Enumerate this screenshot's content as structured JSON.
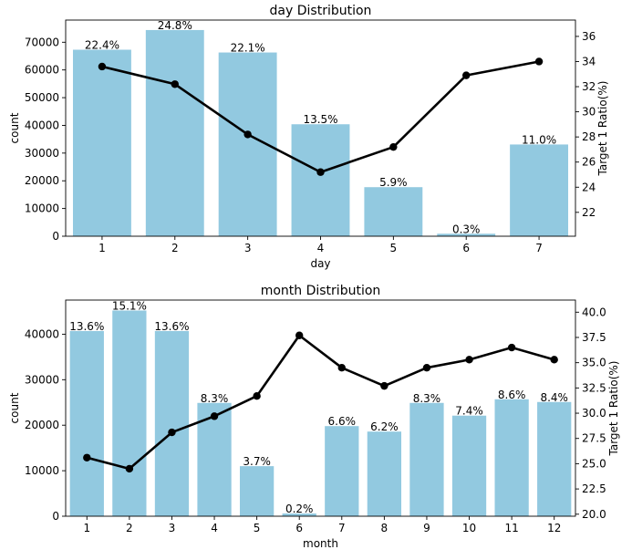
{
  "chart_data": [
    {
      "type": "bar+line",
      "title": "day Distribution",
      "xlabel": "day",
      "ylabel": "count",
      "y2label": "Target 1 Ratio(%)",
      "categories": [
        "1",
        "2",
        "3",
        "4",
        "5",
        "6",
        "7"
      ],
      "counts": [
        67300,
        74400,
        66300,
        40400,
        17700,
        900,
        33100
      ],
      "pct_labels": [
        "22.4%",
        "24.8%",
        "22.1%",
        "13.5%",
        "5.9%",
        "0.3%",
        "11.0%"
      ],
      "ratios": [
        33.6,
        32.2,
        28.2,
        25.2,
        27.2,
        32.9,
        34.0
      ],
      "ylim": [
        0,
        78000
      ],
      "y2lim": [
        20.1,
        37.3
      ],
      "yticks": [
        0,
        10000,
        20000,
        30000,
        40000,
        50000,
        60000,
        70000
      ],
      "y2ticks": [
        22,
        24,
        26,
        28,
        30,
        32,
        34,
        36
      ],
      "bar_color": "#92c9e0",
      "line_color": "#000000"
    },
    {
      "type": "bar+line",
      "title": "month Distribution",
      "xlabel": "month",
      "ylabel": "count",
      "y2label": "Target 1 Ratio(%)",
      "categories": [
        "1",
        "2",
        "3",
        "4",
        "5",
        "6",
        "7",
        "8",
        "9",
        "10",
        "11",
        "12"
      ],
      "counts": [
        40700,
        45200,
        40700,
        24900,
        11000,
        600,
        19800,
        18600,
        24900,
        22100,
        25700,
        25100
      ],
      "pct_labels": [
        "13.6%",
        "15.1%",
        "13.6%",
        "8.3%",
        "3.7%",
        "0.2%",
        "6.6%",
        "6.2%",
        "8.3%",
        "7.4%",
        "8.6%",
        "8.4%"
      ],
      "ratios": [
        25.6,
        24.5,
        28.1,
        29.7,
        31.7,
        37.7,
        34.5,
        32.7,
        34.5,
        35.3,
        36.5,
        35.3
      ],
      "ylim": [
        0,
        47500
      ],
      "y2lim": [
        19.8,
        41.2
      ],
      "yticks": [
        0,
        10000,
        20000,
        30000,
        40000
      ],
      "y2ticks": [
        "20.0",
        "22.5",
        "25.0",
        "27.5",
        "30.0",
        "32.5",
        "35.0",
        "37.5",
        "40.0"
      ],
      "bar_color": "#92c9e0",
      "line_color": "#000000"
    }
  ]
}
